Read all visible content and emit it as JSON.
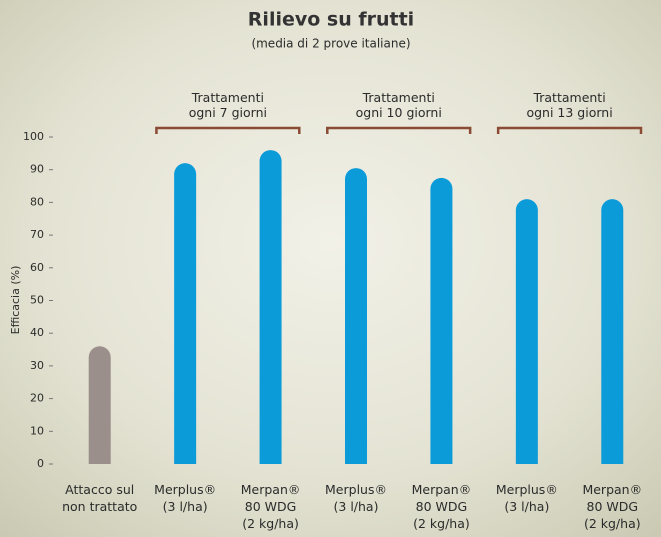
{
  "chart_data": {
    "type": "bar",
    "title": "Rilievo su frutti",
    "subtitle": "(media di 2 prove italiane)",
    "y_label": "Efficacia (%)",
    "categories": [
      "Attacco sul\nnon trattato",
      "Merplus®\n(3 l/ha)",
      "Merpan®\n80 WDG\n(2 kg/ha)",
      "Merplus®\n(3 l/ha)",
      "Merpan®\n80 WDG\n(2 kg/ha)",
      "Merplus®\n(3 l/ha)",
      "Merpan®\n80 WDG\n(2 kg/ha)"
    ],
    "values": [
      36,
      92,
      96,
      90.5,
      87.5,
      81,
      81
    ],
    "colors": [
      "#9b8f8c",
      "#0b9bd8",
      "#0b9bd8",
      "#0b9bd8",
      "#0b9bd8",
      "#0b9bd8",
      "#0b9bd8"
    ],
    "groups": [
      "Trattamenti\nogni 7 giorni",
      "Trattamenti\nogni 10 giorni",
      "Trattamenti\nogni 13 giorni"
    ],
    "group_color": "#8a4a33",
    "ylim": [
      0,
      100
    ],
    "yticks": [
      0,
      10,
      20,
      30,
      40,
      50,
      60,
      70,
      80,
      90,
      100
    ],
    "grid": false
  }
}
